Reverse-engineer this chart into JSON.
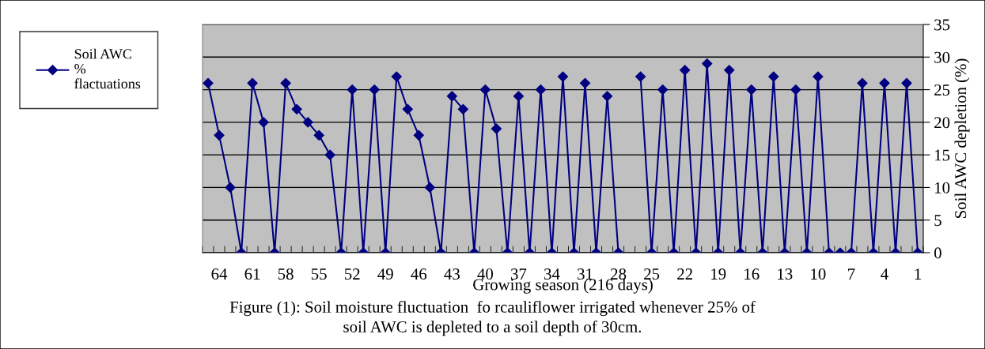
{
  "chart_data": {
    "type": "line",
    "xlabel": "Growing season (216 days)",
    "ylabel": "Soil AWC depletion (%)",
    "categories": [
      null,
      "64",
      null,
      null,
      "61",
      null,
      null,
      "58",
      null,
      null,
      "55",
      null,
      null,
      "52",
      null,
      null,
      "49",
      null,
      null,
      "46",
      null,
      null,
      "43",
      null,
      null,
      "40",
      null,
      null,
      "37",
      null,
      null,
      "34",
      null,
      null,
      "31",
      null,
      null,
      "28",
      null,
      null,
      "25",
      null,
      null,
      "22",
      null,
      null,
      "19",
      null,
      null,
      "16",
      null,
      null,
      "13",
      null,
      null,
      "10",
      null,
      null,
      "7",
      null,
      null,
      "4",
      null,
      null,
      "1"
    ],
    "series": [
      {
        "name": "Soil AWC\n%\nflactuations",
        "color": "#000080",
        "values": [
          26,
          18,
          10,
          0,
          26,
          20,
          0,
          26,
          22,
          20,
          18,
          15,
          0,
          25,
          0,
          25,
          0,
          27,
          22,
          18,
          10,
          0,
          24,
          22,
          0,
          25,
          19,
          0,
          24,
          0,
          25,
          0,
          27,
          0,
          26,
          0,
          24,
          0,
          null,
          27,
          0,
          25,
          0,
          28,
          0,
          29,
          0,
          28,
          0,
          25,
          0,
          27,
          0,
          25,
          0,
          27,
          0,
          0,
          0,
          26,
          0,
          26,
          0,
          26,
          0
        ]
      }
    ],
    "ylim": [
      0,
      35
    ],
    "yticks": [
      0,
      5,
      10,
      15,
      20,
      25,
      30,
      35
    ],
    "grid": "y",
    "legend": "left",
    "marker": "diamond",
    "line_style": "solid",
    "annotations": [
      "Figure (1): Soil moisture fluctuation  fo rcauliflower irrigated whenever 25% of\nsoil AWC is depleted to a soil depth of 30cm."
    ]
  }
}
